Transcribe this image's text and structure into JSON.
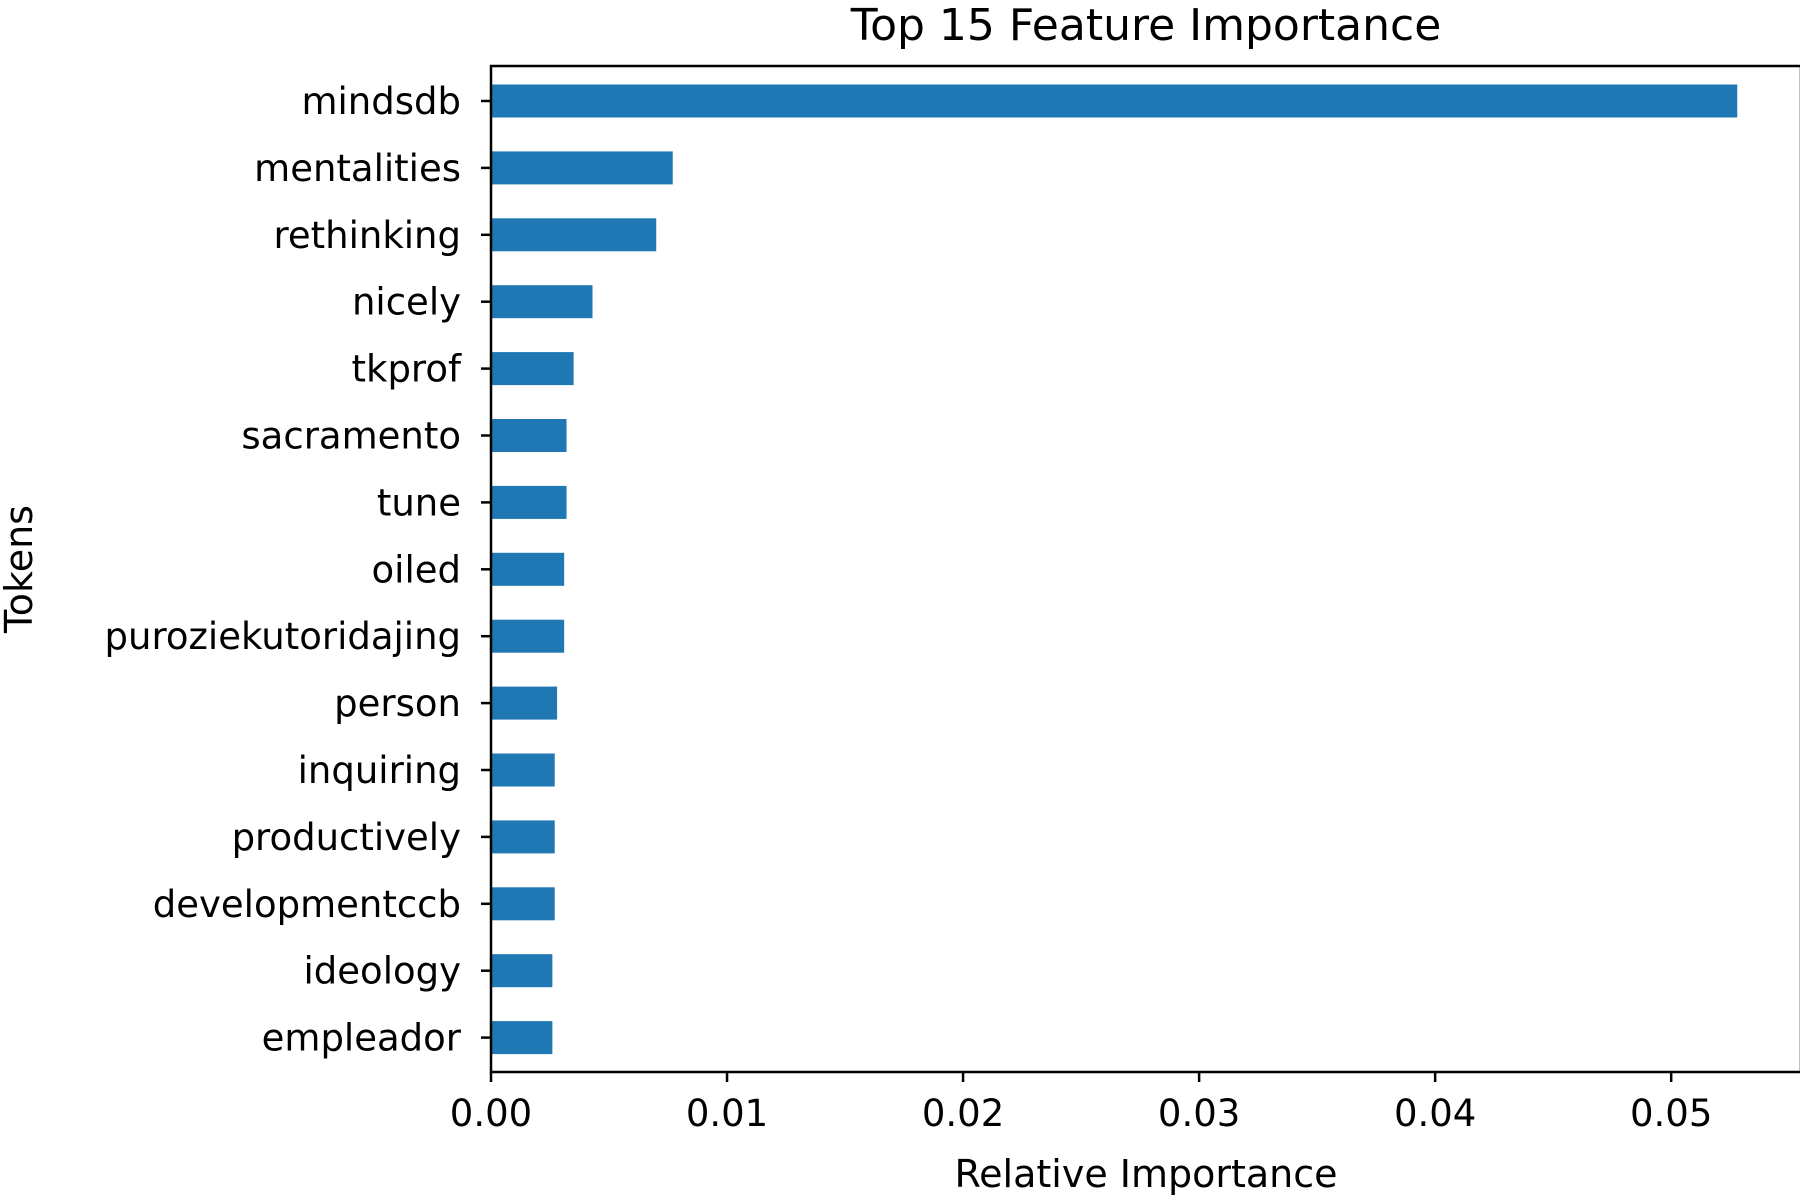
{
  "chart_data": {
    "type": "bar",
    "orientation": "horizontal",
    "title": "Top 15 Feature Importance",
    "xlabel": "Relative Importance",
    "ylabel": "Tokens",
    "xlim": [
      0,
      0.0555
    ],
    "xticks": [
      "0.00",
      "0.01",
      "0.02",
      "0.03",
      "0.04",
      "0.05"
    ],
    "tick_values": [
      0,
      0.01,
      0.02,
      0.03,
      0.04,
      0.05
    ],
    "bar_color": "#1f77b4",
    "grid": false,
    "categories": [
      "mindsdb",
      "mentalities",
      "rethinking",
      "nicely",
      "tkprof",
      "sacramento",
      "tune",
      "oiled",
      "puroziekutoridajing",
      "person",
      "inquiring",
      "productively",
      "developmentccb",
      "ideology",
      "empleador"
    ],
    "values": [
      0.0528,
      0.0077,
      0.007,
      0.0043,
      0.0035,
      0.0032,
      0.0032,
      0.0031,
      0.0031,
      0.0028,
      0.0027,
      0.0027,
      0.0027,
      0.0026,
      0.0026
    ]
  }
}
